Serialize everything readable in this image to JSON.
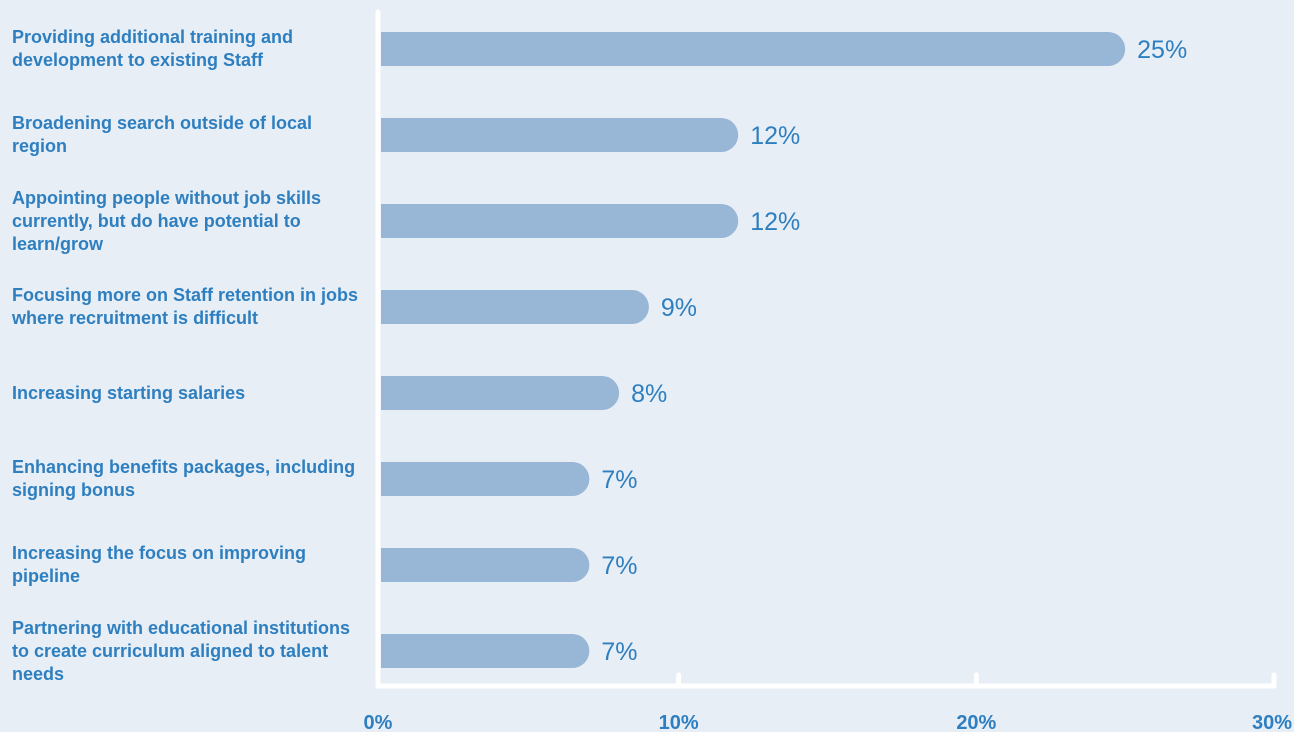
{
  "colors": {
    "background": "#e8eef6",
    "bar": "#98b6d6",
    "text": "#2e7fc0",
    "axis": "#ffffff"
  },
  "chart_data": {
    "type": "bar",
    "orientation": "horizontal",
    "categories": [
      "Providing additional training and development to existing Staff",
      "Broadening search outside of local region",
      "Appointing people without job skills currently, but do have potential to learn/grow",
      "Focusing more on Staff retention in jobs where recruitment is difficult",
      "Increasing starting salaries",
      "Enhancing benefits packages, including signing bonus",
      "Increasing the focus on improving pipeline",
      "Partnering with educational institutions to create curriculum aligned to talent needs"
    ],
    "values": [
      25,
      12,
      12,
      9,
      8,
      7,
      7,
      7
    ],
    "data_labels": [
      "25%",
      "12%",
      "12%",
      "9%",
      "8%",
      "7%",
      "7%",
      "7%"
    ],
    "xlim": [
      0,
      30
    ],
    "xticks": [
      0,
      10,
      20,
      30
    ],
    "xtick_labels": [
      "0%",
      "10%",
      "20%",
      "30%"
    ],
    "grid": false,
    "legend": "none"
  }
}
